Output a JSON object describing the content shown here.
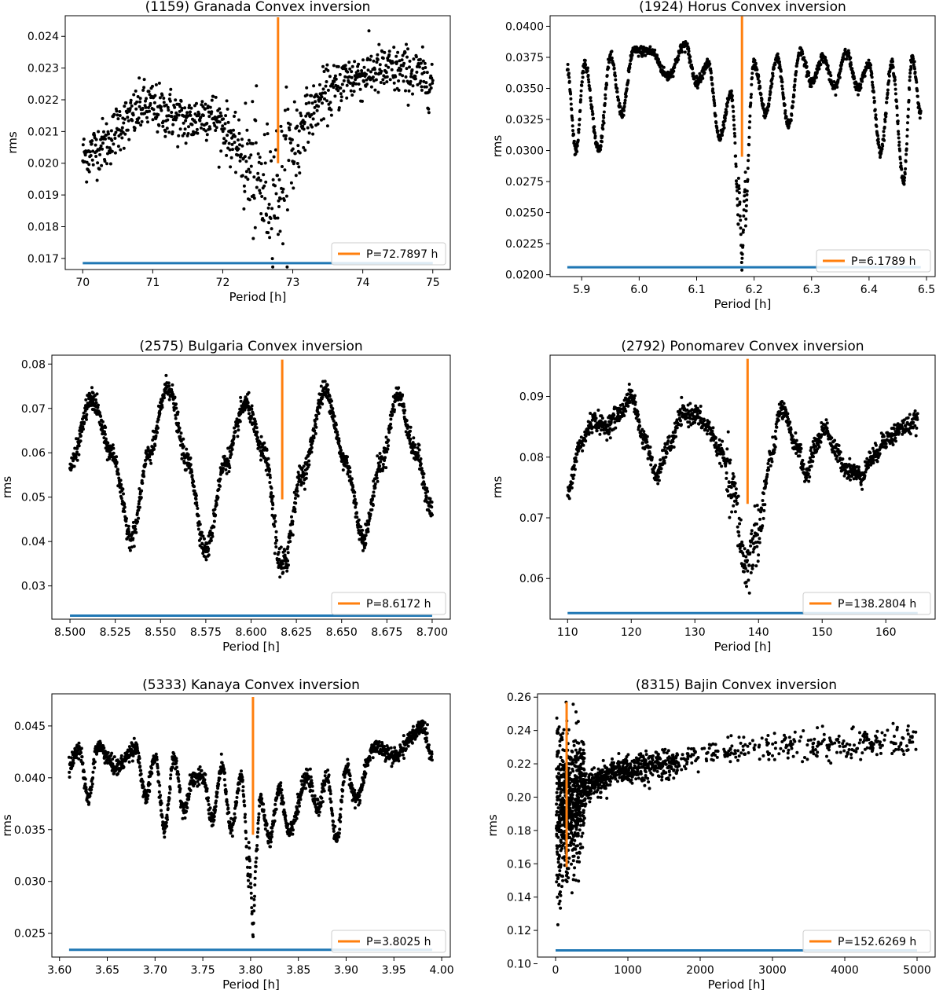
{
  "chart_data": [
    {
      "type": "scatter",
      "title": "(1159) Granada Convex inversion",
      "xlabel": "Period [h]",
      "ylabel": "rms",
      "xlim": [
        69.75,
        75.25
      ],
      "ylim": [
        0.01665,
        0.02465
      ],
      "xticks": [
        "70",
        "71",
        "72",
        "73",
        "74",
        "75"
      ],
      "yticks": [
        "0.017",
        "0.018",
        "0.019",
        "0.020",
        "0.021",
        "0.022",
        "0.023",
        "0.024"
      ],
      "grid": false,
      "legend": {
        "label": "P=72.7897 h",
        "placement": "lower-right"
      },
      "best_period": {
        "x": 72.7897,
        "y_min": 0.02,
        "y_max": 0.0246
      },
      "baseline": {
        "y": 0.01685,
        "x_range": [
          70.0,
          75.0
        ]
      },
      "scatter_profile": [
        [
          70.0,
          0.0202
        ],
        [
          70.3,
          0.0206
        ],
        [
          70.6,
          0.0213
        ],
        [
          70.9,
          0.0218
        ],
        [
          71.2,
          0.0216
        ],
        [
          71.5,
          0.0213
        ],
        [
          71.8,
          0.0216
        ],
        [
          72.0,
          0.0212
        ],
        [
          72.2,
          0.0205
        ],
        [
          72.4,
          0.0198
        ],
        [
          72.6,
          0.0191
        ],
        [
          72.8,
          0.0193
        ],
        [
          73.0,
          0.0205
        ],
        [
          73.2,
          0.0215
        ],
        [
          73.5,
          0.0222
        ],
        [
          73.8,
          0.0227
        ],
        [
          74.2,
          0.0229
        ],
        [
          74.6,
          0.0229
        ],
        [
          75.0,
          0.0226
        ]
      ],
      "scatter_spread": 0.0004,
      "scatter_count": 900
    },
    {
      "type": "scatter",
      "title": "(1924) Horus Convex inversion",
      "xlabel": "Period [h]",
      "ylabel": "rms",
      "xlim": [
        5.845,
        6.515
      ],
      "ylim": [
        0.01985,
        0.04085
      ],
      "xticks": [
        "5.9",
        "6.0",
        "6.1",
        "6.2",
        "6.3",
        "6.4",
        "6.5"
      ],
      "yticks": [
        "0.0200",
        "0.0225",
        "0.0250",
        "0.0275",
        "0.0300",
        "0.0325",
        "0.0350",
        "0.0375",
        "0.0400"
      ],
      "grid": false,
      "legend": {
        "label": "P=6.1789 h",
        "placement": "lower-right"
      },
      "best_period": {
        "x": 6.1789,
        "y_min": 0.0295,
        "y_max": 0.0408
      },
      "baseline": {
        "y": 0.0206,
        "x_range": [
          5.875,
          6.49
        ]
      },
      "scatter_profile": [
        [
          5.875,
          0.0365
        ],
        [
          5.89,
          0.03
        ],
        [
          5.905,
          0.037
        ],
        [
          5.93,
          0.03
        ],
        [
          5.95,
          0.0375
        ],
        [
          5.97,
          0.033
        ],
        [
          5.99,
          0.038
        ],
        [
          6.02,
          0.038
        ],
        [
          6.05,
          0.036
        ],
        [
          6.08,
          0.0385
        ],
        [
          6.1,
          0.0355
        ],
        [
          6.12,
          0.037
        ],
        [
          6.14,
          0.031
        ],
        [
          6.16,
          0.0345
        ],
        [
          6.1789,
          0.0205
        ],
        [
          6.2,
          0.037
        ],
        [
          6.22,
          0.033
        ],
        [
          6.24,
          0.0375
        ],
        [
          6.26,
          0.032
        ],
        [
          6.28,
          0.038
        ],
        [
          6.3,
          0.0355
        ],
        [
          6.32,
          0.0375
        ],
        [
          6.34,
          0.035
        ],
        [
          6.36,
          0.038
        ],
        [
          6.38,
          0.035
        ],
        [
          6.4,
          0.037
        ],
        [
          6.42,
          0.03
        ],
        [
          6.44,
          0.037
        ],
        [
          6.46,
          0.0275
        ],
        [
          6.475,
          0.0375
        ],
        [
          6.49,
          0.033
        ]
      ],
      "scatter_spread": 0.0002,
      "scatter_count": 1400
    },
    {
      "type": "scatter",
      "title": "(2575) Bulgaria Convex inversion",
      "xlabel": "Period [h]",
      "ylabel": "rms",
      "xlim": [
        8.49,
        8.71
      ],
      "ylim": [
        0.0225,
        0.082
      ],
      "xticks": [
        "8.500",
        "8.525",
        "8.550",
        "8.575",
        "8.600",
        "8.625",
        "8.650",
        "8.675",
        "8.700"
      ],
      "yticks": [
        "0.03",
        "0.04",
        "0.05",
        "0.06",
        "0.07",
        "0.08"
      ],
      "grid": false,
      "legend": {
        "label": "P=8.6172 h",
        "placement": "lower-right"
      },
      "best_period": {
        "x": 8.6172,
        "y_min": 0.0495,
        "y_max": 0.081
      },
      "baseline": {
        "y": 0.0233,
        "x_range": [
          8.5,
          8.7
        ]
      },
      "scatter_profile": [
        [
          8.5,
          0.057
        ],
        [
          8.512,
          0.072
        ],
        [
          8.523,
          0.06
        ],
        [
          8.534,
          0.041
        ],
        [
          8.544,
          0.06
        ],
        [
          8.554,
          0.075
        ],
        [
          8.565,
          0.058
        ],
        [
          8.575,
          0.038
        ],
        [
          8.586,
          0.058
        ],
        [
          8.597,
          0.071
        ],
        [
          8.607,
          0.06
        ],
        [
          8.6172,
          0.034
        ],
        [
          8.628,
          0.055
        ],
        [
          8.641,
          0.074
        ],
        [
          8.652,
          0.058
        ],
        [
          8.662,
          0.041
        ],
        [
          8.672,
          0.058
        ],
        [
          8.681,
          0.073
        ],
        [
          8.691,
          0.06
        ],
        [
          8.7,
          0.047
        ]
      ],
      "scatter_spread": 0.0012,
      "scatter_count": 1500
    },
    {
      "type": "scatter",
      "title": "(2792) Ponomarev Convex inversion",
      "xlabel": "Period [h]",
      "ylabel": "rms",
      "xlim": [
        107.25,
        167.75
      ],
      "ylim": [
        0.0533,
        0.0968
      ],
      "xticks": [
        "110",
        "120",
        "130",
        "140",
        "150",
        "160"
      ],
      "yticks": [
        "0.06",
        "0.07",
        "0.08",
        "0.09"
      ],
      "grid": false,
      "legend": {
        "label": "P=138.2804 h",
        "placement": "lower-right"
      },
      "best_period": {
        "x": 138.2804,
        "y_min": 0.0723,
        "y_max": 0.0962
      },
      "baseline": {
        "y": 0.0543,
        "x_range": [
          110.0,
          165.0
        ]
      },
      "scatter_profile": [
        [
          110,
          0.074
        ],
        [
          112,
          0.082
        ],
        [
          114,
          0.086
        ],
        [
          116,
          0.085
        ],
        [
          118,
          0.087
        ],
        [
          120,
          0.09
        ],
        [
          122,
          0.083
        ],
        [
          124,
          0.077
        ],
        [
          126,
          0.082
        ],
        [
          128,
          0.087
        ],
        [
          130,
          0.087
        ],
        [
          132,
          0.085
        ],
        [
          134,
          0.081
        ],
        [
          136,
          0.074
        ],
        [
          138,
          0.062
        ],
        [
          140,
          0.068
        ],
        [
          142,
          0.08
        ],
        [
          143.5,
          0.088
        ],
        [
          146,
          0.082
        ],
        [
          147.5,
          0.077
        ],
        [
          149,
          0.082
        ],
        [
          150.5,
          0.085
        ],
        [
          152,
          0.081
        ],
        [
          154,
          0.078
        ],
        [
          156,
          0.077
        ],
        [
          158,
          0.08
        ],
        [
          160,
          0.083
        ],
        [
          163,
          0.085
        ],
        [
          165,
          0.086
        ]
      ],
      "scatter_spread": 0.0008,
      "scatter_count": 1300
    },
    {
      "type": "scatter",
      "title": "(5333) Kanaya Convex inversion",
      "xlabel": "Period [h]",
      "ylabel": "rms",
      "xlim": [
        3.592,
        4.009
      ],
      "ylim": [
        0.0227,
        0.0481
      ],
      "xticks": [
        "3.60",
        "3.65",
        "3.70",
        "3.75",
        "3.80",
        "3.85",
        "3.90",
        "3.95",
        "4.00"
      ],
      "yticks": [
        "0.025",
        "0.030",
        "0.035",
        "0.040",
        "0.045"
      ],
      "grid": false,
      "legend": {
        "label": "P=3.8025 h",
        "placement": "lower-right"
      },
      "best_period": {
        "x": 3.8025,
        "y_min": 0.0345,
        "y_max": 0.0478
      },
      "baseline": {
        "y": 0.0234,
        "x_range": [
          3.61,
          3.99
        ]
      },
      "scatter_profile": [
        [
          3.61,
          0.041
        ],
        [
          3.62,
          0.043
        ],
        [
          3.63,
          0.038
        ],
        [
          3.64,
          0.043
        ],
        [
          3.66,
          0.041
        ],
        [
          3.68,
          0.043
        ],
        [
          3.69,
          0.038
        ],
        [
          3.7,
          0.042
        ],
        [
          3.71,
          0.035
        ],
        [
          3.72,
          0.042
        ],
        [
          3.73,
          0.037
        ],
        [
          3.74,
          0.04
        ],
        [
          3.75,
          0.04
        ],
        [
          3.76,
          0.036
        ],
        [
          3.77,
          0.041
        ],
        [
          3.78,
          0.035
        ],
        [
          3.79,
          0.04
        ],
        [
          3.8025,
          0.025
        ],
        [
          3.81,
          0.038
        ],
        [
          3.82,
          0.034
        ],
        [
          3.83,
          0.039
        ],
        [
          3.84,
          0.035
        ],
        [
          3.86,
          0.04
        ],
        [
          3.87,
          0.037
        ],
        [
          3.88,
          0.04
        ],
        [
          3.89,
          0.034
        ],
        [
          3.9,
          0.041
        ],
        [
          3.91,
          0.038
        ],
        [
          3.93,
          0.043
        ],
        [
          3.95,
          0.042
        ],
        [
          3.97,
          0.044
        ],
        [
          3.98,
          0.045
        ],
        [
          3.99,
          0.042
        ]
      ],
      "scatter_spread": 0.0004,
      "scatter_count": 1500
    },
    {
      "type": "scatter",
      "title": "(8315) Bajin Convex inversion",
      "xlabel": "Period [h]",
      "ylabel": "rms",
      "xlim": [
        -250,
        5250
      ],
      "ylim": [
        0.104,
        0.262
      ],
      "xticks": [
        "0",
        "1000",
        "2000",
        "3000",
        "4000",
        "5000"
      ],
      "yticks": [
        "0.10",
        "0.12",
        "0.14",
        "0.16",
        "0.18",
        "0.20",
        "0.22",
        "0.24",
        "0.26"
      ],
      "grid": false,
      "legend": {
        "label": "P=152.6269 h",
        "placement": "lower-right"
      },
      "best_period": {
        "x": 152.6269,
        "y_min": 0.158,
        "y_max": 0.257
      },
      "baseline": {
        "y": 0.108,
        "x_range": [
          0,
          5000
        ]
      },
      "scatter_profile": [
        [
          10,
          0.19
        ],
        [
          100,
          0.19
        ],
        [
          200,
          0.195
        ],
        [
          300,
          0.2
        ],
        [
          400,
          0.205
        ],
        [
          600,
          0.21
        ],
        [
          800,
          0.215
        ],
        [
          1000,
          0.215
        ],
        [
          1200,
          0.218
        ],
        [
          1500,
          0.22
        ],
        [
          2000,
          0.225
        ],
        [
          2500,
          0.228
        ],
        [
          3000,
          0.23
        ],
        [
          3500,
          0.231
        ],
        [
          4000,
          0.232
        ],
        [
          4500,
          0.233
        ],
        [
          5000,
          0.234
        ]
      ],
      "scatter_spread": 0.004,
      "scatter_count": 1500
    }
  ],
  "colors": {
    "scatter": "#000000",
    "best_period_line": "#ff7f0e",
    "baseline": "#1f77b4",
    "axes": "#000000"
  }
}
